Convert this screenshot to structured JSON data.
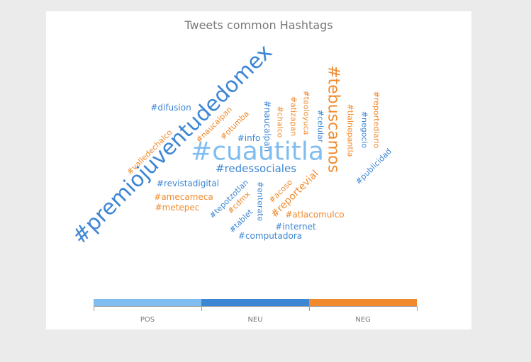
{
  "chart_data": {
    "type": "wordcloud",
    "title": "Tweets common Hashtags",
    "colors": {
      "POS": "#7fbdf0",
      "NEU": "#3d86d4",
      "NEG": "#f08a2c"
    },
    "legend": {
      "position": "bottom",
      "entries": [
        "POS",
        "NEU",
        "NEG"
      ]
    },
    "words": [
      {
        "text": "#premiojuventudedomex",
        "sentiment": "NEU",
        "weight": 10
      },
      {
        "text": "#cuautitla",
        "sentiment": "POS",
        "weight": 9
      },
      {
        "text": "#tebuscamos",
        "sentiment": "NEG",
        "weight": 7
      },
      {
        "text": "#redessociales",
        "sentiment": "NEU",
        "weight": 3
      },
      {
        "text": "#reportevial",
        "sentiment": "NEG",
        "weight": 3
      },
      {
        "text": "#difusion",
        "sentiment": "NEU",
        "weight": 2
      },
      {
        "text": "#info",
        "sentiment": "NEU",
        "weight": 2
      },
      {
        "text": "#revistadigital",
        "sentiment": "NEU",
        "weight": 2
      },
      {
        "text": "#amecameca",
        "sentiment": "NEG",
        "weight": 2
      },
      {
        "text": "#metepec",
        "sentiment": "NEG",
        "weight": 2
      },
      {
        "text": "#atlacomulco",
        "sentiment": "NEG",
        "weight": 2
      },
      {
        "text": "#internet",
        "sentiment": "NEU",
        "weight": 2
      },
      {
        "text": "#computadora",
        "sentiment": "NEU",
        "weight": 2
      },
      {
        "text": "#naucalpan",
        "sentiment": "NEU",
        "weight": 2
      },
      {
        "text": "#naucalpan",
        "sentiment": "NEG",
        "weight": 1
      },
      {
        "text": "#otumba",
        "sentiment": "NEG",
        "weight": 1
      },
      {
        "text": "#valledechalco",
        "sentiment": "NEG",
        "weight": 1
      },
      {
        "text": "#chalco",
        "sentiment": "NEG",
        "weight": 1
      },
      {
        "text": "#atizapan",
        "sentiment": "NEG",
        "weight": 1
      },
      {
        "text": "#teoloyuca",
        "sentiment": "NEG",
        "weight": 1
      },
      {
        "text": "#celular",
        "sentiment": "NEU",
        "weight": 1
      },
      {
        "text": "#tlalnepantla",
        "sentiment": "NEG",
        "weight": 1
      },
      {
        "text": "#negocio",
        "sentiment": "NEU",
        "weight": 1
      },
      {
        "text": "#reportediario",
        "sentiment": "NEG",
        "weight": 1
      },
      {
        "text": "#publicidad",
        "sentiment": "NEU",
        "weight": 1
      },
      {
        "text": "#tepotzotlan",
        "sentiment": "NEU",
        "weight": 1
      },
      {
        "text": "#cdmx",
        "sentiment": "NEG",
        "weight": 1
      },
      {
        "text": "#tablet",
        "sentiment": "NEU",
        "weight": 1
      },
      {
        "text": "#enterate",
        "sentiment": "NEU",
        "weight": 1
      },
      {
        "text": "#acoso",
        "sentiment": "NEG",
        "weight": 1
      }
    ]
  }
}
